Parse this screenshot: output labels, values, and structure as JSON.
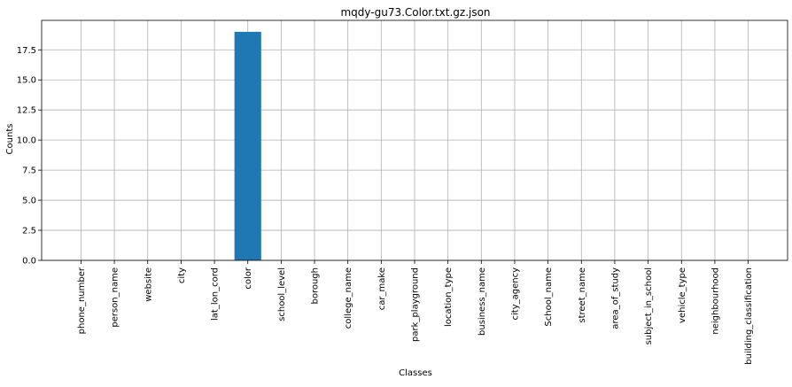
{
  "chart_data": {
    "type": "bar",
    "title": "mqdy-gu73.Color.txt.gz.json",
    "xlabel": "Classes",
    "ylabel": "Counts",
    "categories": [
      "phone_number",
      "person_name",
      "website",
      "city",
      "lat_lon_cord",
      "color",
      "school_level",
      "borough",
      "college_name",
      "car_make",
      "park_playground",
      "location_type",
      "business_name",
      "city_agency",
      "School_name",
      "street_name",
      "area_of_study",
      "subject_in_school",
      "vehicle_type",
      "neighbourhood",
      "building_classification"
    ],
    "values": [
      0,
      0,
      0,
      0,
      0,
      19,
      0,
      0,
      0,
      0,
      0,
      0,
      0,
      0,
      0,
      0,
      0,
      0,
      0,
      0,
      0
    ],
    "ylim": [
      0,
      19.95
    ],
    "yticks": [
      0.0,
      2.5,
      5.0,
      7.5,
      10.0,
      12.5,
      15.0,
      17.5
    ],
    "ytick_labels": [
      "0.0",
      "2.5",
      "5.0",
      "7.5",
      "10.0",
      "12.5",
      "15.0",
      "17.5"
    ],
    "grid": true,
    "bar_color": "#1f77b4",
    "grid_color": "#b0b0b0"
  }
}
